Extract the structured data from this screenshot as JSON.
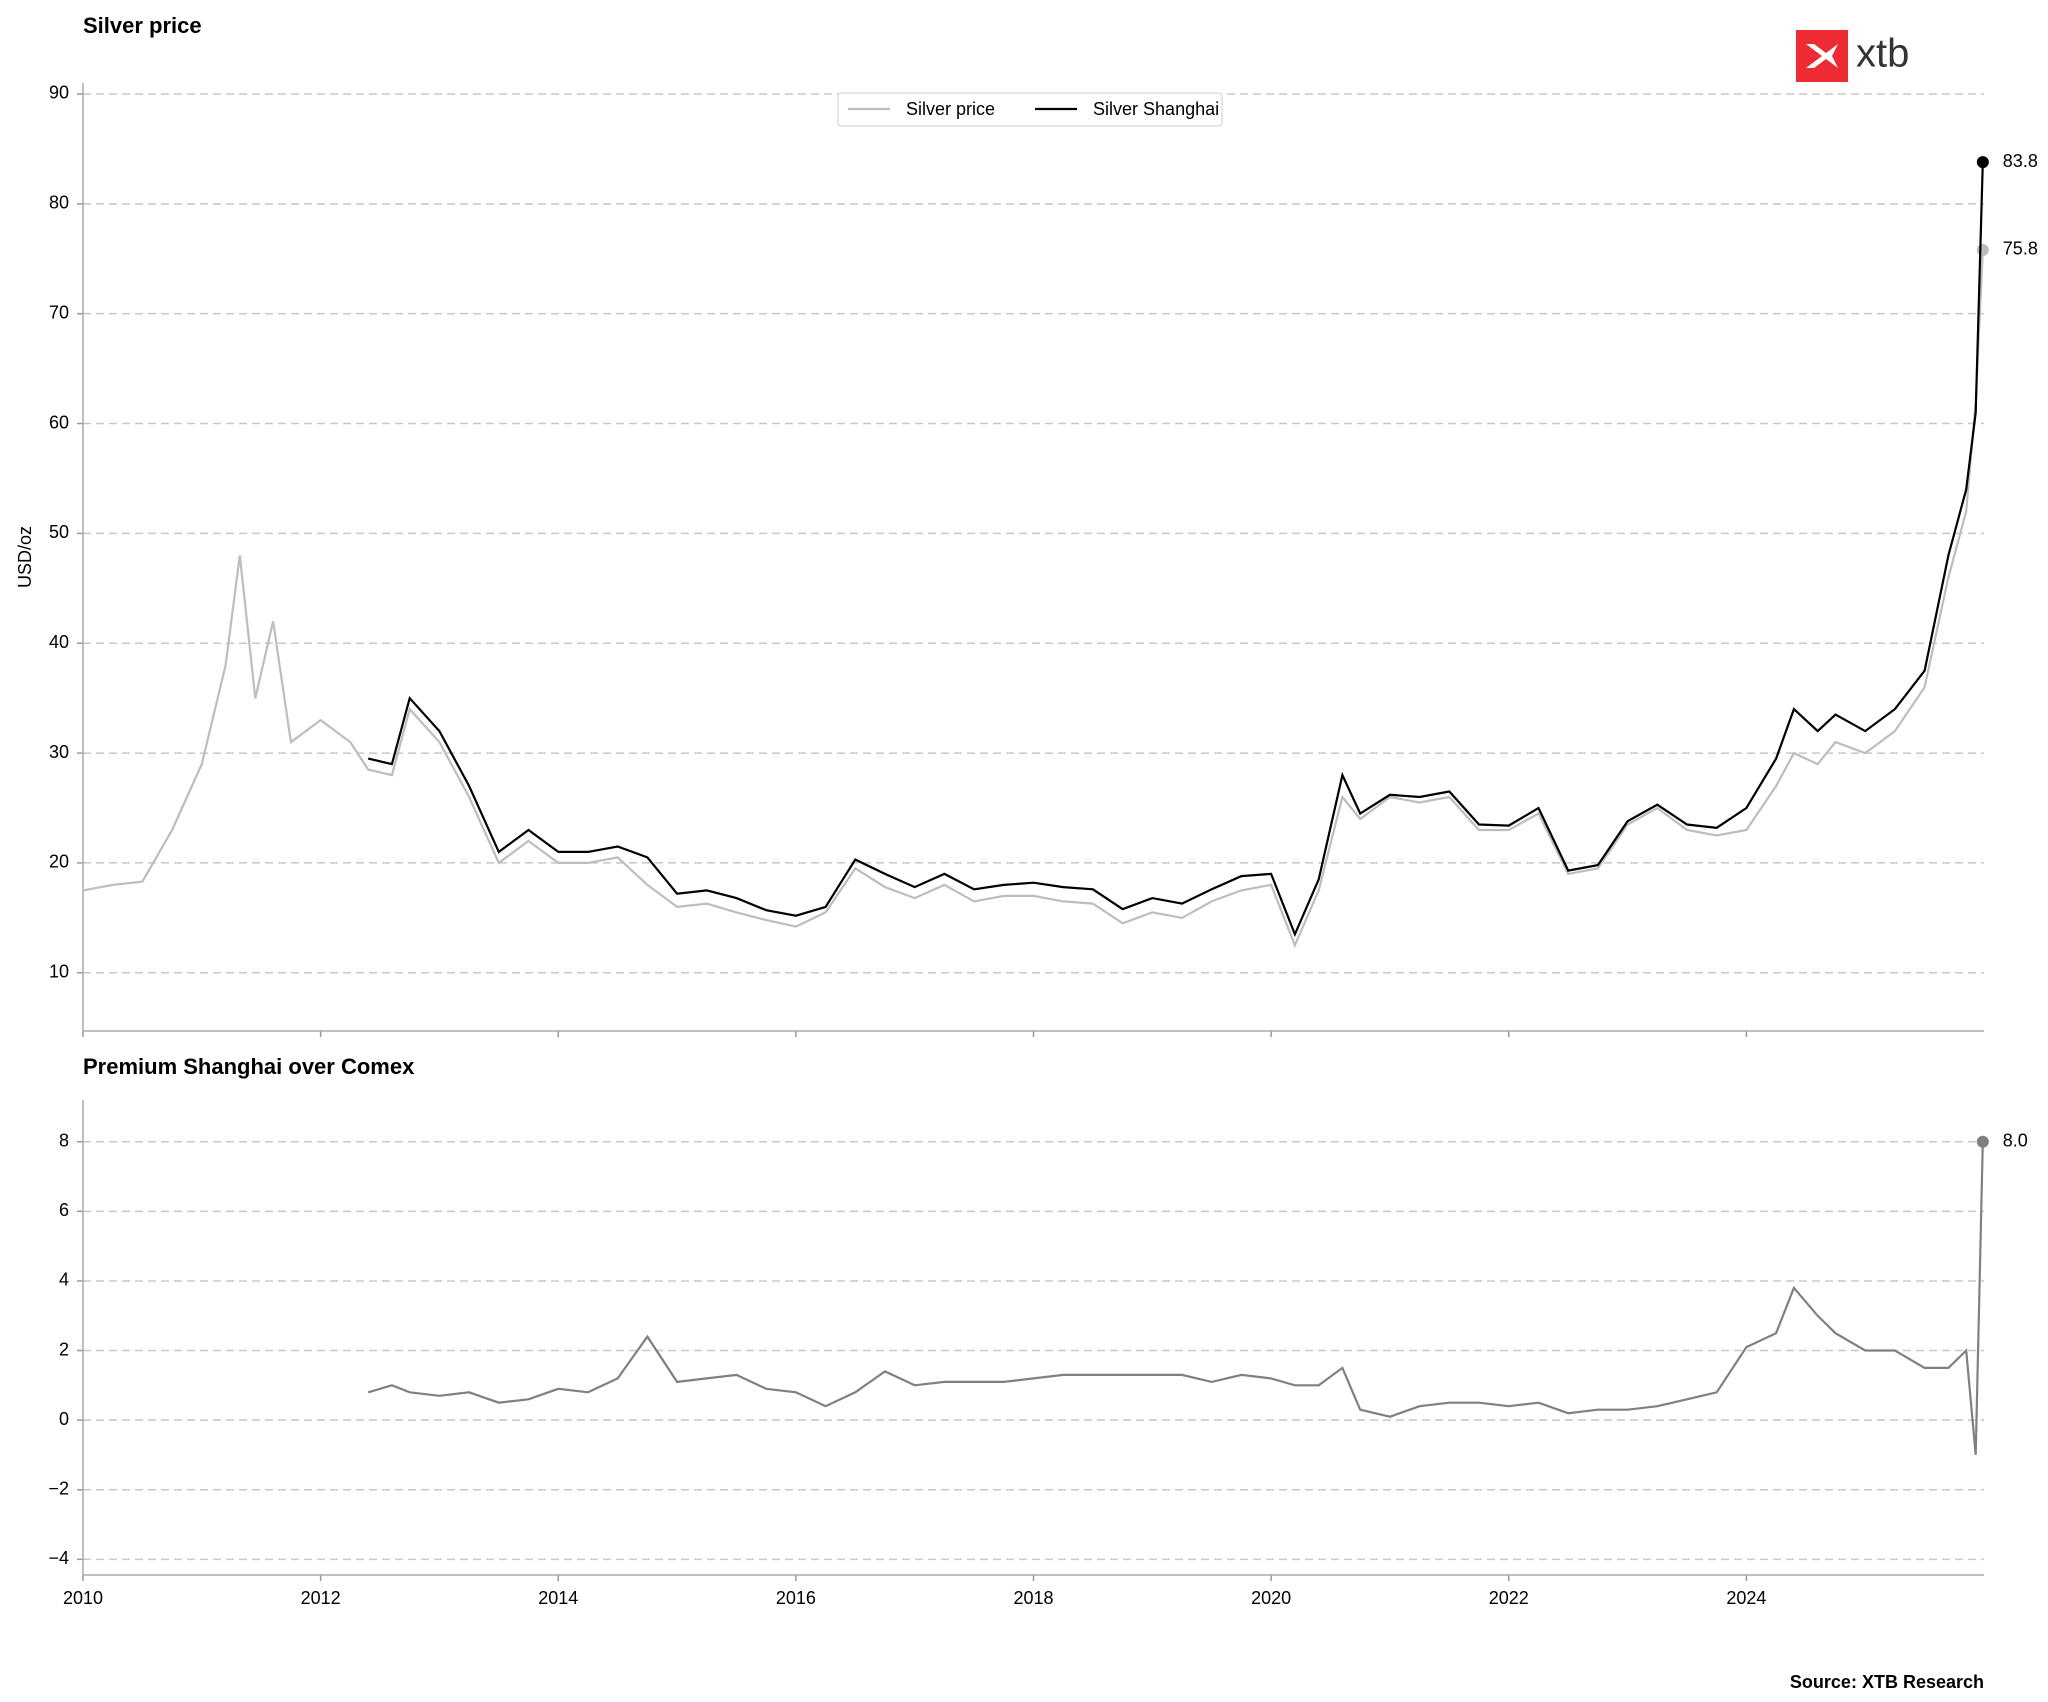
{
  "logo": "xtb",
  "source": "Source: XTB Research",
  "chart_data": [
    {
      "type": "line",
      "title": "Silver price",
      "ylabel": "USD/oz",
      "x": [
        2010.0,
        2010.25,
        2010.5,
        2010.75,
        2011.0,
        2011.2,
        2011.32,
        2011.45,
        2011.6,
        2011.75,
        2012.0,
        2012.25,
        2012.4,
        2012.6,
        2012.75,
        2013.0,
        2013.25,
        2013.5,
        2013.75,
        2014.0,
        2014.25,
        2014.5,
        2014.75,
        2015.0,
        2015.25,
        2015.5,
        2015.75,
        2016.0,
        2016.25,
        2016.5,
        2016.75,
        2017.0,
        2017.25,
        2017.5,
        2017.75,
        2018.0,
        2018.25,
        2018.5,
        2018.75,
        2019.0,
        2019.25,
        2019.5,
        2019.75,
        2020.0,
        2020.2,
        2020.4,
        2020.6,
        2020.75,
        2021.0,
        2021.25,
        2021.5,
        2021.75,
        2022.0,
        2022.25,
        2022.5,
        2022.75,
        2023.0,
        2023.25,
        2023.5,
        2023.75,
        2024.0,
        2024.25,
        2024.4,
        2024.6,
        2024.75,
        2025.0,
        2025.25,
        2025.5,
        2025.7,
        2025.85,
        2025.93,
        2025.99
      ],
      "series": [
        {
          "name": "Silver price",
          "color": "#bdbdbd",
          "values": [
            17.5,
            18,
            18.3,
            23,
            29,
            38,
            48,
            35,
            42,
            31,
            33,
            31,
            28.5,
            28,
            34,
            31,
            26,
            20,
            22,
            20,
            20,
            20.5,
            18,
            16,
            16.3,
            15.5,
            14.8,
            14.2,
            15.5,
            19.5,
            17.8,
            16.8,
            18,
            16.5,
            17,
            17,
            16.5,
            16.3,
            14.5,
            15.5,
            15,
            16.5,
            17.5,
            18,
            12.5,
            17.5,
            26,
            24,
            26,
            25.5,
            26,
            23,
            23,
            24.5,
            19,
            19.5,
            23.5,
            25,
            23,
            22.5,
            23,
            27,
            30,
            29,
            31,
            30,
            32,
            36,
            46,
            52,
            62,
            75.8
          ]
        },
        {
          "name": "Silver Shanghai",
          "color": "#000000",
          "values": [
            null,
            null,
            null,
            null,
            null,
            null,
            null,
            null,
            null,
            null,
            null,
            null,
            29.5,
            29,
            35,
            32,
            27,
            21,
            23,
            21,
            21,
            21.5,
            20.5,
            17.2,
            17.5,
            16.8,
            15.7,
            15.2,
            16,
            20.3,
            19,
            17.8,
            19,
            17.6,
            18,
            18.2,
            17.8,
            17.6,
            15.8,
            16.8,
            16.3,
            17.6,
            18.8,
            19,
            13.5,
            18.5,
            28,
            24.5,
            26.2,
            26,
            26.5,
            23.5,
            23.4,
            25,
            19.3,
            19.8,
            23.8,
            25.3,
            23.5,
            23.2,
            25,
            29.5,
            34,
            32,
            33.5,
            32,
            34,
            37.5,
            48,
            54,
            61,
            83.8
          ]
        }
      ],
      "xlim": [
        2010,
        2026
      ],
      "xticks": [
        2010,
        2012,
        2014,
        2016,
        2018,
        2020,
        2022,
        2024
      ],
      "show_xtick_labels": false,
      "ylim": [
        4.7,
        91
      ],
      "yticks": [
        10,
        20,
        30,
        40,
        50,
        60,
        70,
        80,
        90
      ],
      "grid": true,
      "legend": "top-center"
    },
    {
      "type": "line",
      "title": "Premium Shanghai over Comex",
      "x": [
        2012.4,
        2012.6,
        2012.75,
        2013.0,
        2013.25,
        2013.5,
        2013.75,
        2014.0,
        2014.25,
        2014.5,
        2014.75,
        2015.0,
        2015.25,
        2015.5,
        2015.75,
        2016.0,
        2016.25,
        2016.5,
        2016.75,
        2017.0,
        2017.25,
        2017.5,
        2017.75,
        2018.0,
        2018.25,
        2018.5,
        2018.75,
        2019.0,
        2019.25,
        2019.5,
        2019.75,
        2020.0,
        2020.2,
        2020.4,
        2020.6,
        2020.75,
        2021.0,
        2021.25,
        2021.5,
        2021.75,
        2022.0,
        2022.25,
        2022.5,
        2022.75,
        2023.0,
        2023.25,
        2023.5,
        2023.75,
        2024.0,
        2024.25,
        2024.4,
        2024.6,
        2024.75,
        2025.0,
        2025.25,
        2025.5,
        2025.7,
        2025.85,
        2025.93,
        2025.99
      ],
      "series": [
        {
          "name": "Premium",
          "color": "#808080",
          "values": [
            0.8,
            1.0,
            0.8,
            0.7,
            0.8,
            0.5,
            0.6,
            0.9,
            0.8,
            1.2,
            2.4,
            1.1,
            1.2,
            1.3,
            0.9,
            0.8,
            0.4,
            0.8,
            1.4,
            1.0,
            1.1,
            1.1,
            1.1,
            1.2,
            1.3,
            1.3,
            1.3,
            1.3,
            1.3,
            1.1,
            1.3,
            1.2,
            1.0,
            1.0,
            1.5,
            0.3,
            0.1,
            0.4,
            0.5,
            0.5,
            0.4,
            0.5,
            0.2,
            0.3,
            0.3,
            0.4,
            0.6,
            0.8,
            2.1,
            2.5,
            3.8,
            3.0,
            2.5,
            2.0,
            2.0,
            1.5,
            1.5,
            2.0,
            -1.0,
            8
          ],
          "value_labels": [
            null,
            null,
            null,
            null,
            null,
            null,
            null,
            null,
            null,
            null,
            null,
            null,
            null,
            null,
            null,
            null,
            null,
            null,
            null,
            null,
            null,
            null,
            null,
            null,
            null,
            null,
            null,
            null,
            null,
            null,
            null,
            null,
            null,
            null,
            null,
            null,
            null,
            null,
            null,
            null,
            null,
            null,
            null,
            null,
            null,
            null,
            null,
            null,
            null,
            null,
            null,
            null,
            null,
            null,
            null,
            null,
            null,
            null,
            null,
            "8.0"
          ]
        }
      ],
      "xlim": [
        2010,
        2026
      ],
      "xticks": [
        2010,
        2012,
        2014,
        2016,
        2018,
        2020,
        2022,
        2024
      ],
      "show_xtick_labels": true,
      "ylim": [
        -4.45,
        9.2
      ],
      "yticks": [
        {
          "value": -4,
          "label": "−4"
        },
        {
          "value": -2,
          "label": "−2"
        },
        0,
        2,
        4,
        6,
        8
      ],
      "grid": true
    }
  ]
}
